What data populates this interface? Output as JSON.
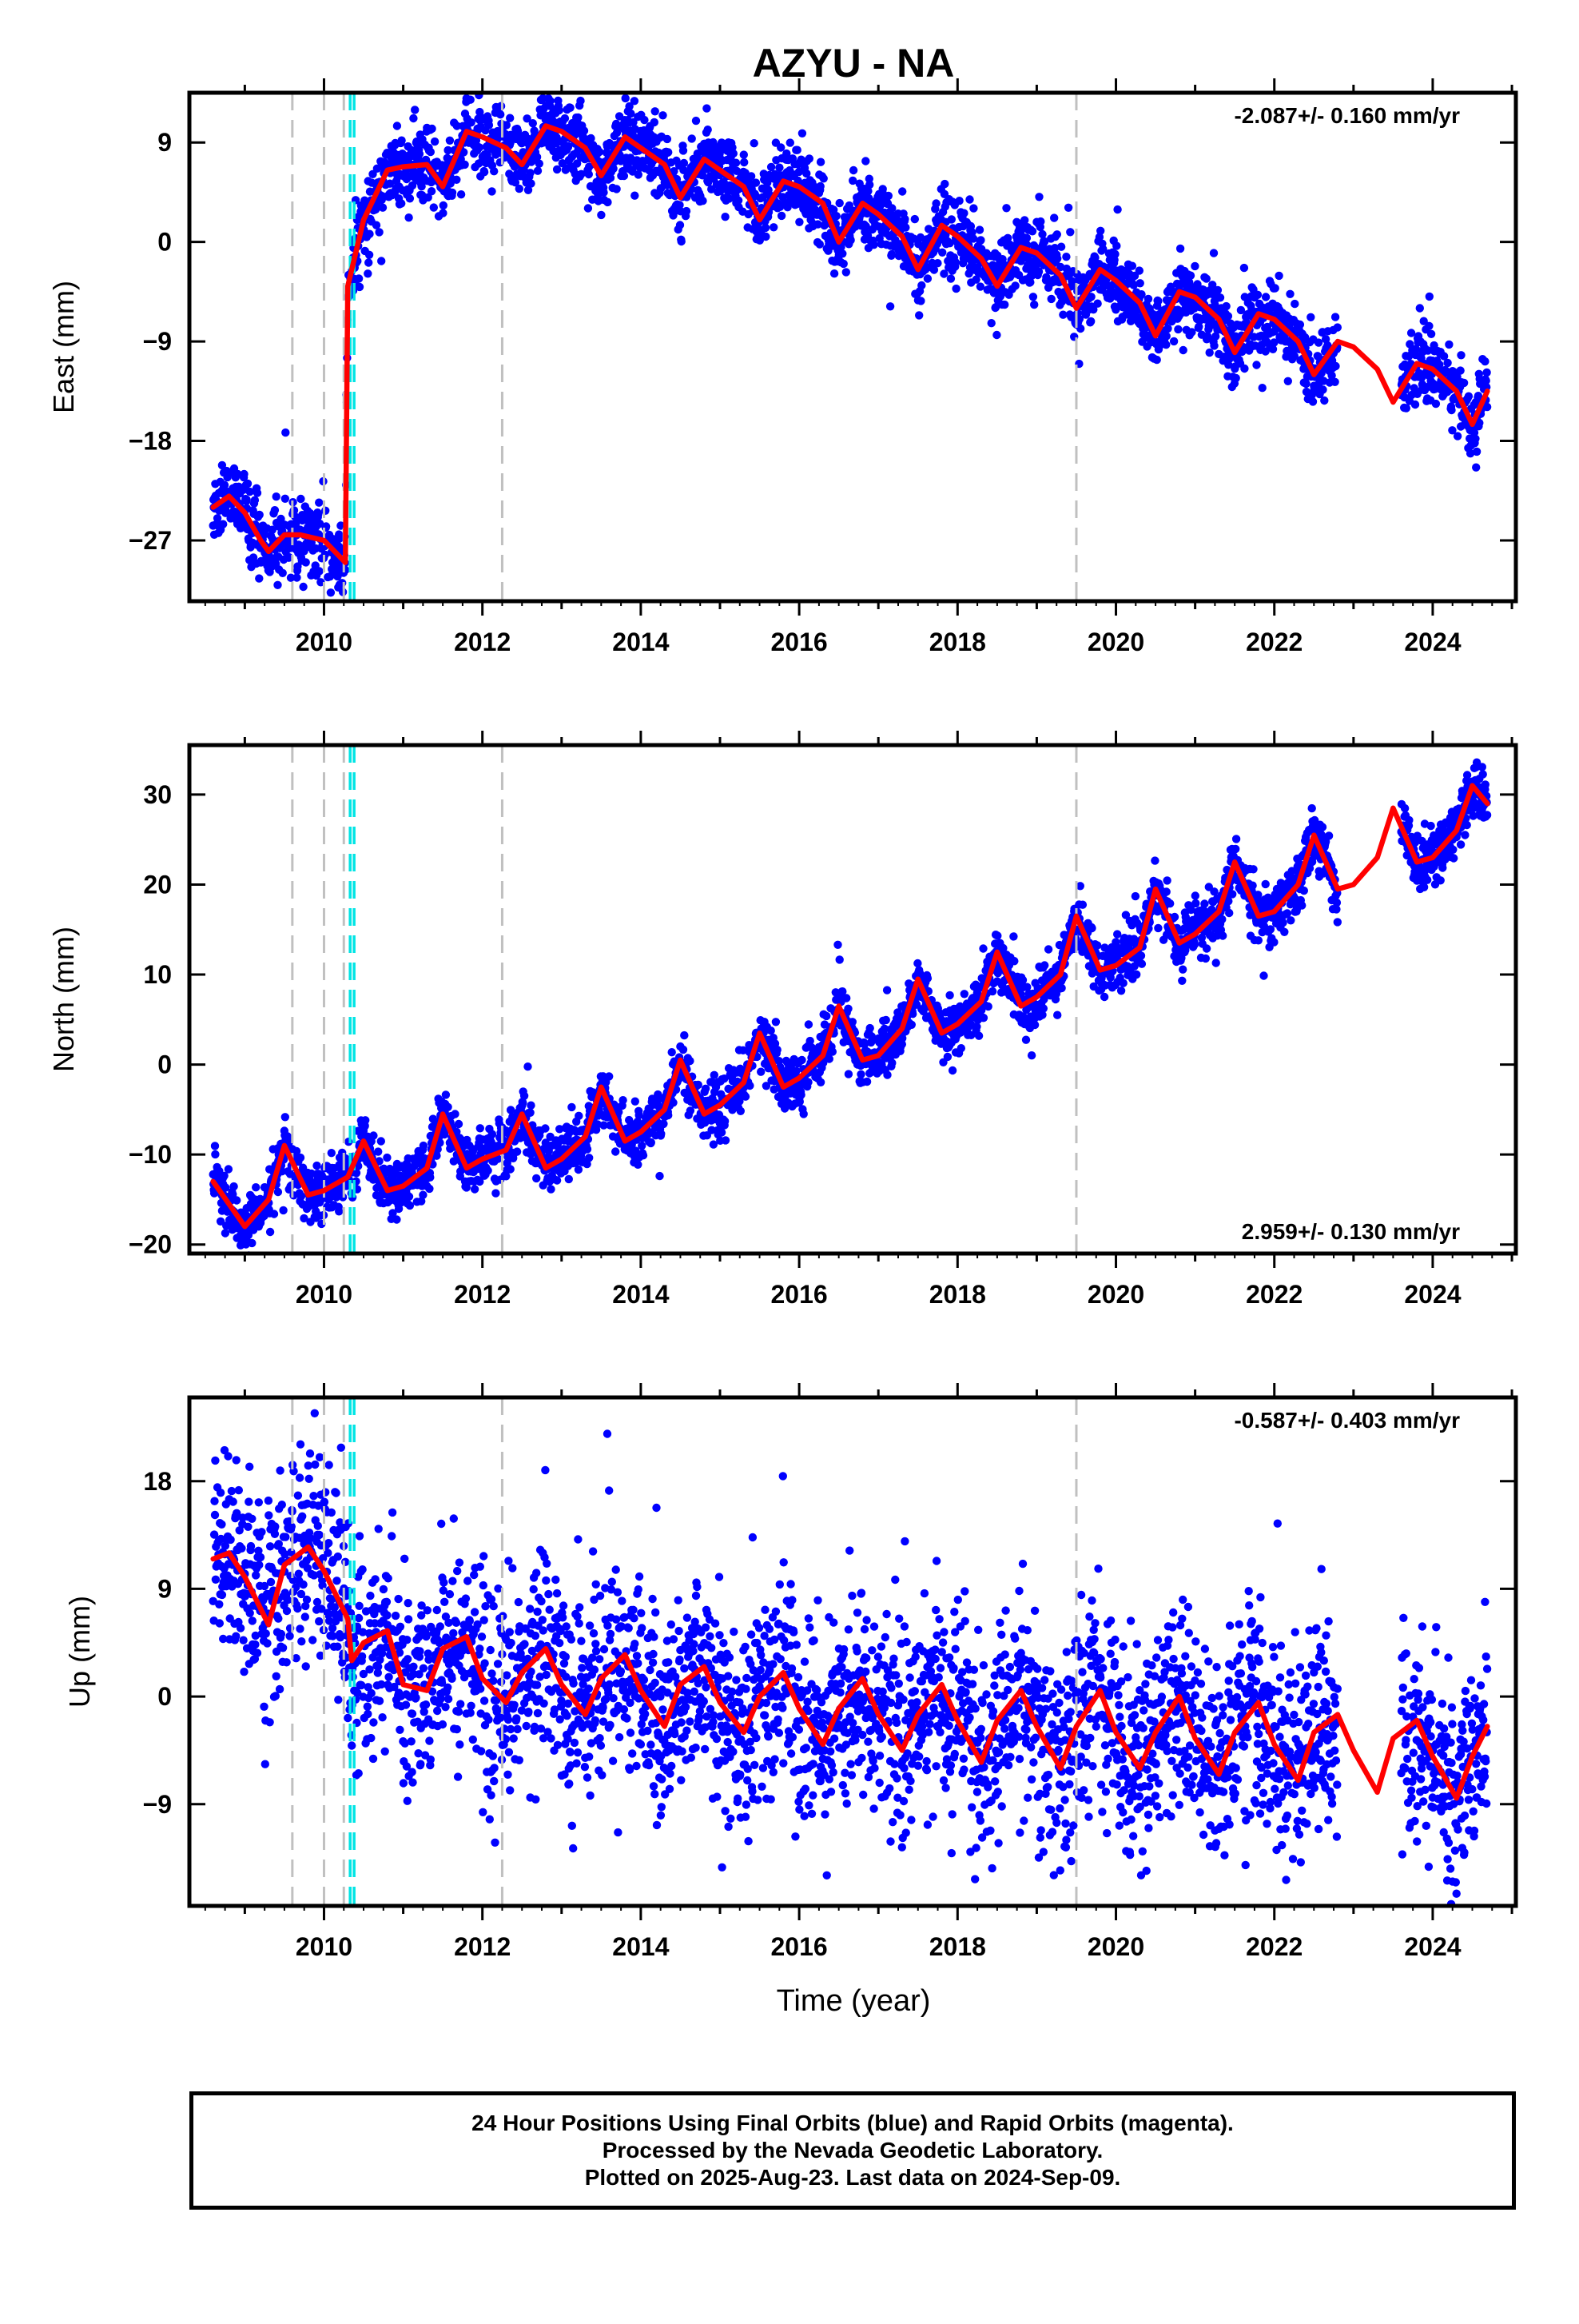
{
  "figure": {
    "title": "AZYU - NA",
    "xlabel": "Time (year)"
  },
  "footer": {
    "line1": "24 Hour Positions Using Final Orbits (blue) and Rapid Orbits (magenta).",
    "line2": "Processed by the Nevada Geodetic Laboratory.",
    "line3": "Plotted on 2025-Aug-23. Last data on 2024-Sep-09."
  },
  "colors": {
    "data_points": "#0000ff",
    "model_fit": "#ff0000",
    "equipment_change_line": "#c0c0c0",
    "earthquake_line": "#00e5e5"
  },
  "chart_data": [
    {
      "type": "scatter",
      "name": "east",
      "ylabel": "East (mm)",
      "xlim": [
        2008.3,
        2025.05
      ],
      "ylim": [
        -32.5,
        13.5
      ],
      "yticks": [
        -27,
        -18,
        -9,
        0,
        9
      ],
      "xticks": [
        2010,
        2012,
        2014,
        2016,
        2018,
        2020,
        2022,
        2024
      ],
      "rate_label": "-2.087+/- 0.160 mm/yr",
      "rate_label_position": "top-right",
      "rate_mm_per_yr": -2.087,
      "rate_sigma_mm_per_yr": 0.16,
      "data_start": 2008.6,
      "data_end": 2024.69,
      "data_gap": [
        2022.8,
        2023.6
      ],
      "grey_dashed_lines_x": [
        2009.6,
        2010.0,
        2010.25,
        2012.25,
        2019.5
      ],
      "cyan_dashed_lines_x": [
        2010.33,
        2010.38
      ],
      "step_offsets": [
        {
          "x": 2010.27,
          "dy": 25.5
        }
      ],
      "model_fit": {
        "x": [
          2008.6,
          2008.8,
          2009.0,
          2009.2,
          2009.3,
          2009.5,
          2009.7,
          2010.0,
          2010.27,
          2010.3,
          2010.5,
          2010.8,
          2011.0,
          2011.3,
          2011.5,
          2011.8,
          2012.0,
          2012.3,
          2012.5,
          2012.8,
          2013.0,
          2013.3,
          2013.5,
          2013.8,
          2014.0,
          2014.3,
          2014.5,
          2014.8,
          2015.0,
          2015.3,
          2015.5,
          2015.8,
          2016.0,
          2016.3,
          2016.5,
          2016.8,
          2017.0,
          2017.3,
          2017.5,
          2017.8,
          2018.0,
          2018.3,
          2018.5,
          2018.8,
          2019.0,
          2019.3,
          2019.5,
          2019.8,
          2020.0,
          2020.3,
          2020.5,
          2020.8,
          2021.0,
          2021.3,
          2021.5,
          2021.8,
          2022.0,
          2022.3,
          2022.5,
          2022.8,
          2023.0,
          2023.3,
          2023.5,
          2023.8,
          2024.0,
          2024.3,
          2024.5,
          2024.69
        ],
        "y": [
          -24.0,
          -23.0,
          -24.5,
          -27.0,
          -28.0,
          -26.5,
          -26.5,
          -27.0,
          -29.0,
          -4.0,
          2.0,
          6.5,
          6.8,
          7.0,
          5.0,
          10.0,
          9.5,
          8.5,
          7.0,
          10.5,
          10.0,
          8.5,
          6.0,
          9.5,
          8.5,
          7.0,
          4.0,
          7.5,
          6.5,
          5.0,
          2.0,
          5.5,
          5.0,
          3.5,
          0.0,
          3.5,
          2.5,
          0.5,
          -2.5,
          1.5,
          0.5,
          -1.5,
          -4.0,
          -0.5,
          -1.0,
          -3.0,
          -6.0,
          -2.5,
          -3.5,
          -5.5,
          -8.5,
          -4.5,
          -5.0,
          -7.0,
          -10.0,
          -6.5,
          -7.0,
          -9.0,
          -12.0,
          -9.0,
          -9.5,
          -11.5,
          -14.5,
          -11.0,
          -11.5,
          -13.5,
          -16.5,
          -13.5
        ]
      },
      "points_scatter_mm": 1.6
    },
    {
      "type": "scatter",
      "name": "north",
      "ylabel": "North (mm)",
      "xlim": [
        2008.3,
        2025.05
      ],
      "ylim": [
        -21.0,
        35.5
      ],
      "yticks": [
        -20,
        -10,
        0,
        10,
        20,
        30
      ],
      "xticks": [
        2010,
        2012,
        2014,
        2016,
        2018,
        2020,
        2022,
        2024
      ],
      "rate_label": "2.959+/- 0.130 mm/yr",
      "rate_label_position": "bottom-right",
      "rate_mm_per_yr": 2.959,
      "rate_sigma_mm_per_yr": 0.13,
      "data_start": 2008.6,
      "data_end": 2024.69,
      "data_gap": [
        2022.8,
        2023.6
      ],
      "grey_dashed_lines_x": [
        2009.6,
        2010.0,
        2010.25,
        2012.25,
        2019.5
      ],
      "cyan_dashed_lines_x": [
        2010.33,
        2010.38
      ],
      "model_fit": {
        "x": [
          2008.6,
          2008.8,
          2009.0,
          2009.3,
          2009.5,
          2009.8,
          2010.0,
          2010.3,
          2010.5,
          2010.8,
          2011.0,
          2011.3,
          2011.5,
          2011.8,
          2012.0,
          2012.3,
          2012.5,
          2012.8,
          2013.0,
          2013.3,
          2013.5,
          2013.8,
          2014.0,
          2014.3,
          2014.5,
          2014.8,
          2015.0,
          2015.3,
          2015.5,
          2015.8,
          2016.0,
          2016.3,
          2016.5,
          2016.8,
          2017.0,
          2017.3,
          2017.5,
          2017.8,
          2018.0,
          2018.3,
          2018.5,
          2018.8,
          2019.0,
          2019.3,
          2019.5,
          2019.8,
          2020.0,
          2020.3,
          2020.5,
          2020.8,
          2021.0,
          2021.3,
          2021.5,
          2021.8,
          2022.0,
          2022.3,
          2022.5,
          2022.8,
          2023.0,
          2023.3,
          2023.5,
          2023.8,
          2024.0,
          2024.3,
          2024.5,
          2024.69
        ],
        "y": [
          -13.0,
          -15.5,
          -18.0,
          -15.0,
          -9.0,
          -14.5,
          -14.0,
          -12.5,
          -8.5,
          -14.0,
          -13.5,
          -11.5,
          -5.5,
          -11.5,
          -10.5,
          -9.5,
          -5.5,
          -11.5,
          -10.5,
          -8.0,
          -2.5,
          -8.5,
          -7.5,
          -5.0,
          0.5,
          -5.5,
          -4.5,
          -2.0,
          3.5,
          -2.5,
          -1.5,
          1.0,
          6.5,
          0.5,
          1.0,
          4.0,
          9.5,
          3.5,
          4.5,
          7.0,
          12.5,
          6.5,
          7.5,
          10.0,
          16.5,
          10.5,
          11.0,
          13.0,
          19.5,
          13.5,
          14.5,
          17.0,
          22.5,
          16.5,
          17.0,
          20.0,
          25.5,
          19.5,
          20.0,
          23.0,
          28.5,
          22.5,
          23.0,
          26.0,
          31.0,
          29.0
        ]
      },
      "points_scatter_mm": 1.5
    },
    {
      "type": "scatter",
      "name": "up",
      "ylabel": "Up (mm)",
      "xlim": [
        2008.3,
        2025.05
      ],
      "ylim": [
        -17.5,
        25.0
      ],
      "yticks": [
        -9,
        0,
        9,
        18
      ],
      "xticks": [
        2010,
        2012,
        2014,
        2016,
        2018,
        2020,
        2022,
        2024
      ],
      "rate_label": "-0.587+/- 0.403 mm/yr",
      "rate_label_position": "top-right",
      "rate_mm_per_yr": -0.587,
      "rate_sigma_mm_per_yr": 0.403,
      "data_start": 2008.6,
      "data_end": 2024.69,
      "data_gap": [
        2022.8,
        2023.6
      ],
      "grey_dashed_lines_x": [
        2009.6,
        2010.0,
        2010.25,
        2012.25,
        2019.5
      ],
      "cyan_dashed_lines_x": [
        2010.33,
        2010.38
      ],
      "model_fit": {
        "x": [
          2008.6,
          2008.8,
          2009.0,
          2009.3,
          2009.5,
          2009.8,
          2010.0,
          2010.3,
          2010.35,
          2010.5,
          2010.8,
          2011.0,
          2011.3,
          2011.5,
          2011.8,
          2012.0,
          2012.3,
          2012.5,
          2012.8,
          2013.0,
          2013.3,
          2013.5,
          2013.8,
          2014.0,
          2014.3,
          2014.5,
          2014.8,
          2015.0,
          2015.3,
          2015.5,
          2015.8,
          2016.0,
          2016.3,
          2016.5,
          2016.8,
          2017.0,
          2017.3,
          2017.5,
          2017.8,
          2018.0,
          2018.3,
          2018.5,
          2018.8,
          2019.0,
          2019.3,
          2019.5,
          2019.8,
          2020.0,
          2020.3,
          2020.5,
          2020.8,
          2021.0,
          2021.3,
          2021.5,
          2021.8,
          2022.0,
          2022.3,
          2022.5,
          2022.8,
          2023.0,
          2023.3,
          2023.5,
          2023.8,
          2024.0,
          2024.3,
          2024.5,
          2024.69
        ],
        "y": [
          11.5,
          12.0,
          10.0,
          6.0,
          11.0,
          12.5,
          10.5,
          6.5,
          3.0,
          4.5,
          5.5,
          1.0,
          0.5,
          4.0,
          5.0,
          1.5,
          -0.5,
          2.0,
          4.0,
          1.0,
          -1.5,
          1.5,
          3.5,
          0.5,
          -2.5,
          1.0,
          2.5,
          -0.5,
          -3.0,
          0.0,
          2.0,
          -1.0,
          -4.0,
          -1.0,
          1.5,
          -1.5,
          -4.5,
          -1.5,
          1.0,
          -2.0,
          -5.5,
          -2.0,
          0.5,
          -2.5,
          -6.0,
          -2.5,
          0.5,
          -3.0,
          -6.0,
          -3.0,
          0.0,
          -3.5,
          -6.5,
          -3.0,
          -0.5,
          -4.0,
          -7.0,
          -3.0,
          -1.5,
          -4.5,
          -8.0,
          -3.5,
          -2.0,
          -5.0,
          -8.5,
          -5.0,
          -2.5
        ]
      },
      "points_scatter_mm": 4.2
    }
  ]
}
